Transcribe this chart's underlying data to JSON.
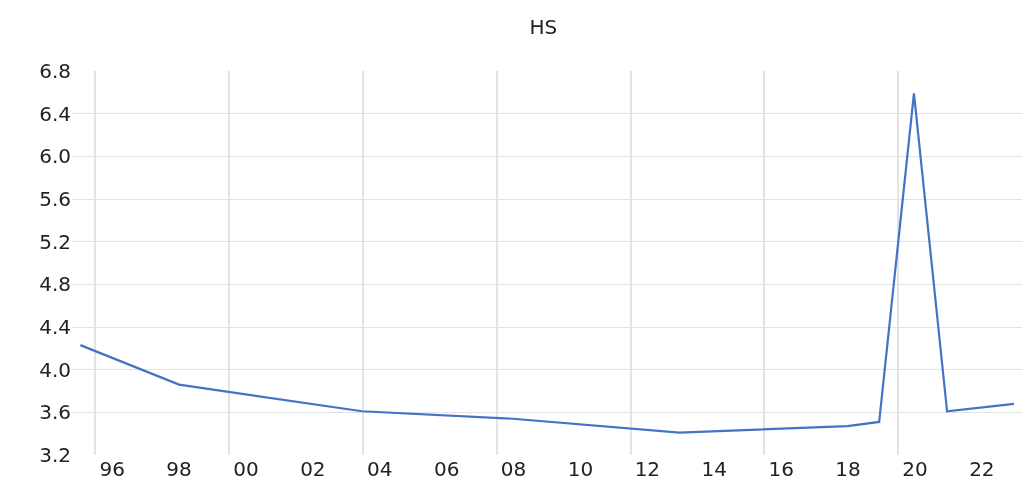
{
  "chart_data": {
    "type": "line",
    "title": "HS",
    "x": [
      1995.05,
      1998,
      2003.47,
      2007.98,
      2012.96,
      2017.98,
      2018.93,
      2019.97,
      2020.96,
      2022.96
    ],
    "series": [
      {
        "color": "#4472c4",
        "values": [
          4.23,
          3.86,
          3.61,
          3.54,
          3.41,
          3.47,
          3.51,
          6.59,
          3.61,
          3.68
        ]
      }
    ],
    "xlim": [
      1994.8,
      2023.2
    ],
    "xticks": [
      {
        "value": 1996,
        "label": "96"
      },
      {
        "value": 1998,
        "label": "98"
      },
      {
        "value": 2000,
        "label": "00"
      },
      {
        "value": 2002,
        "label": "02"
      },
      {
        "value": 2004,
        "label": "04"
      },
      {
        "value": 2006,
        "label": "06"
      },
      {
        "value": 2008,
        "label": "08"
      },
      {
        "value": 2010,
        "label": "10"
      },
      {
        "value": 2012,
        "label": "12"
      },
      {
        "value": 2014,
        "label": "14"
      },
      {
        "value": 2016,
        "label": "16"
      },
      {
        "value": 2018,
        "label": "18"
      },
      {
        "value": 2020,
        "label": "20"
      },
      {
        "value": 2022,
        "label": "22"
      },
      {
        "value": 1995.5,
        "label": null
      },
      {
        "value": 1999.5,
        "label": null
      },
      {
        "value": 2003.5,
        "label": null
      },
      {
        "value": 2007.5,
        "label": null
      },
      {
        "value": 2011.5,
        "label": null
      },
      {
        "value": 2015.5,
        "label": null
      },
      {
        "value": 2019.5,
        "label": null
      }
    ],
    "ylim": [
      3.2,
      6.8
    ],
    "yticks": [
      {
        "value": 3.2,
        "label": "3.2"
      },
      {
        "value": 3.6,
        "label": "3.6"
      },
      {
        "value": 4.0,
        "label": "4.0"
      },
      {
        "value": 4.4,
        "label": "4.4"
      },
      {
        "value": 4.8,
        "label": "4.8"
      },
      {
        "value": 5.2,
        "label": "5.2"
      },
      {
        "value": 5.6,
        "label": "5.6"
      },
      {
        "value": 6.0,
        "label": "6.0"
      },
      {
        "value": 6.4,
        "label": "6.4"
      },
      {
        "value": 6.8,
        "label": "6.8"
      }
    ],
    "grid": true,
    "marker": "none",
    "line_style": "solid"
  }
}
